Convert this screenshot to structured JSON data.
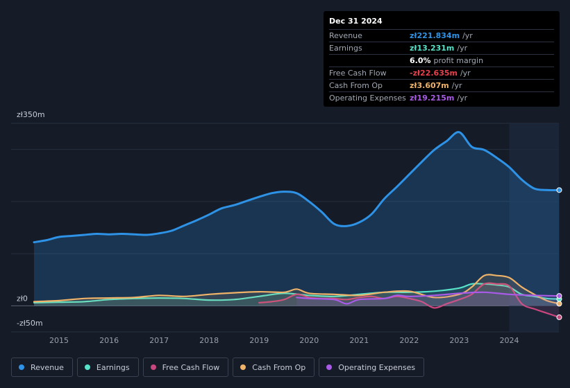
{
  "tooltip": {
    "date": "Dec 31 2024",
    "rows": [
      {
        "label": "Revenue",
        "value": "zł221.834m",
        "unit": "/yr",
        "color": "#2e93e6"
      },
      {
        "label": "Earnings",
        "value": "zł13.231m",
        "unit": "/yr",
        "color": "#57e3c9"
      },
      {
        "label": "",
        "value": "6.0%",
        "unit": "profit margin",
        "color": "#ffffff"
      },
      {
        "label": "Free Cash Flow",
        "value": "-zł22.635m",
        "unit": "/yr",
        "color": "#e8414e"
      },
      {
        "label": "Cash From Op",
        "value": "zł3.607m",
        "unit": "/yr",
        "color": "#f0b36a"
      },
      {
        "label": "Operating Expenses",
        "value": "zł19.215m",
        "unit": "/yr",
        "color": "#a95be8"
      }
    ]
  },
  "legend": [
    {
      "label": "Revenue",
      "color": "#2e93e6"
    },
    {
      "label": "Earnings",
      "color": "#57e3c9"
    },
    {
      "label": "Free Cash Flow",
      "color": "#c9467e"
    },
    {
      "label": "Cash From Op",
      "color": "#f0b36a"
    },
    {
      "label": "Operating Expenses",
      "color": "#a95be8"
    }
  ],
  "chart_data": {
    "type": "area",
    "ylim": [
      -50,
      350
    ],
    "xlim": [
      2014.0,
      2025.0
    ],
    "y_tick_labels": [
      {
        "value": 350,
        "label": "zł350m"
      },
      {
        "value": 0,
        "label": "zł0"
      },
      {
        "value": -50,
        "label": "-zł50m"
      }
    ],
    "x_ticks": [
      2015,
      2016,
      2017,
      2018,
      2019,
      2020,
      2021,
      2022,
      2023,
      2024
    ],
    "forecast_start": 2024.0,
    "series": [
      {
        "name": "Revenue",
        "color": "#2e93e6",
        "fill": true,
        "x": [
          2014.5,
          2014.75,
          2015.0,
          2015.25,
          2015.5,
          2015.75,
          2016.0,
          2016.25,
          2016.5,
          2016.75,
          2017.0,
          2017.25,
          2017.5,
          2017.75,
          2018.0,
          2018.25,
          2018.5,
          2018.75,
          2019.0,
          2019.25,
          2019.5,
          2019.75,
          2020.0,
          2020.25,
          2020.5,
          2020.75,
          2021.0,
          2021.25,
          2021.5,
          2021.75,
          2022.0,
          2022.25,
          2022.5,
          2022.75,
          2023.0,
          2023.25,
          2023.5,
          2023.75,
          2024.0,
          2024.25,
          2024.5,
          2024.75,
          2025.0
        ],
        "y": [
          122,
          126,
          132,
          134,
          136,
          138,
          137,
          138,
          137,
          136,
          139,
          144,
          154,
          164,
          175,
          187,
          193,
          201,
          209,
          216,
          219,
          216,
          200,
          180,
          157,
          153,
          160,
          176,
          205,
          228,
          252,
          276,
          299,
          316,
          333,
          305,
          299,
          284,
          266,
          242,
          225,
          222,
          222
        ]
      },
      {
        "name": "Earnings",
        "color": "#57e3c9",
        "fill": false,
        "x": [
          2014.5,
          2015.0,
          2015.5,
          2016.0,
          2016.5,
          2017.0,
          2017.5,
          2018.0,
          2018.5,
          2019.0,
          2019.5,
          2020.0,
          2020.5,
          2021.0,
          2021.5,
          2022.0,
          2022.5,
          2023.0,
          2023.25,
          2023.5,
          2023.75,
          2024.0,
          2024.25,
          2024.5,
          2024.75,
          2025.0
        ],
        "y": [
          6,
          7,
          8,
          12,
          14,
          15,
          14,
          11,
          12,
          18,
          24,
          20,
          18,
          22,
          26,
          26,
          28,
          34,
          42,
          42,
          40,
          36,
          22,
          18,
          14,
          13
        ]
      },
      {
        "name": "Free Cash Flow",
        "color": "#c9467e",
        "fill": false,
        "x": [
          2019.0,
          2019.25,
          2019.5,
          2019.75,
          2020.0,
          2020.25,
          2020.5,
          2020.75,
          2021.0,
          2021.25,
          2021.5,
          2021.75,
          2022.0,
          2022.25,
          2022.5,
          2022.75,
          2023.0,
          2023.25,
          2023.5,
          2023.75,
          2024.0,
          2024.25,
          2024.5,
          2024.75,
          2025.0
        ],
        "y": [
          6,
          8,
          12,
          22,
          16,
          14,
          14,
          12,
          16,
          18,
          14,
          18,
          14,
          8,
          -4,
          4,
          12,
          22,
          42,
          42,
          38,
          4,
          -6,
          -14,
          -22
        ]
      },
      {
        "name": "Cash From Op",
        "color": "#f0b36a",
        "fill": false,
        "x": [
          2014.5,
          2015.0,
          2015.5,
          2016.0,
          2016.5,
          2017.0,
          2017.5,
          2018.0,
          2018.5,
          2019.0,
          2019.5,
          2019.75,
          2020.0,
          2020.5,
          2021.0,
          2021.5,
          2022.0,
          2022.5,
          2023.0,
          2023.25,
          2023.5,
          2023.75,
          2024.0,
          2024.25,
          2024.5,
          2024.75,
          2025.0
        ],
        "y": [
          8,
          10,
          14,
          15,
          16,
          20,
          18,
          22,
          25,
          27,
          26,
          32,
          24,
          22,
          20,
          26,
          28,
          16,
          22,
          36,
          58,
          58,
          54,
          36,
          22,
          10,
          4
        ]
      },
      {
        "name": "Operating Expenses",
        "color": "#a95be8",
        "fill": false,
        "x": [
          2019.75,
          2020.0,
          2020.5,
          2020.75,
          2021.0,
          2021.5,
          2021.75,
          2022.0,
          2022.5,
          2023.0,
          2023.5,
          2024.0,
          2024.5,
          2025.0
        ],
        "y": [
          16,
          14,
          12,
          4,
          12,
          14,
          20,
          18,
          20,
          24,
          26,
          22,
          20,
          19
        ]
      }
    ]
  }
}
